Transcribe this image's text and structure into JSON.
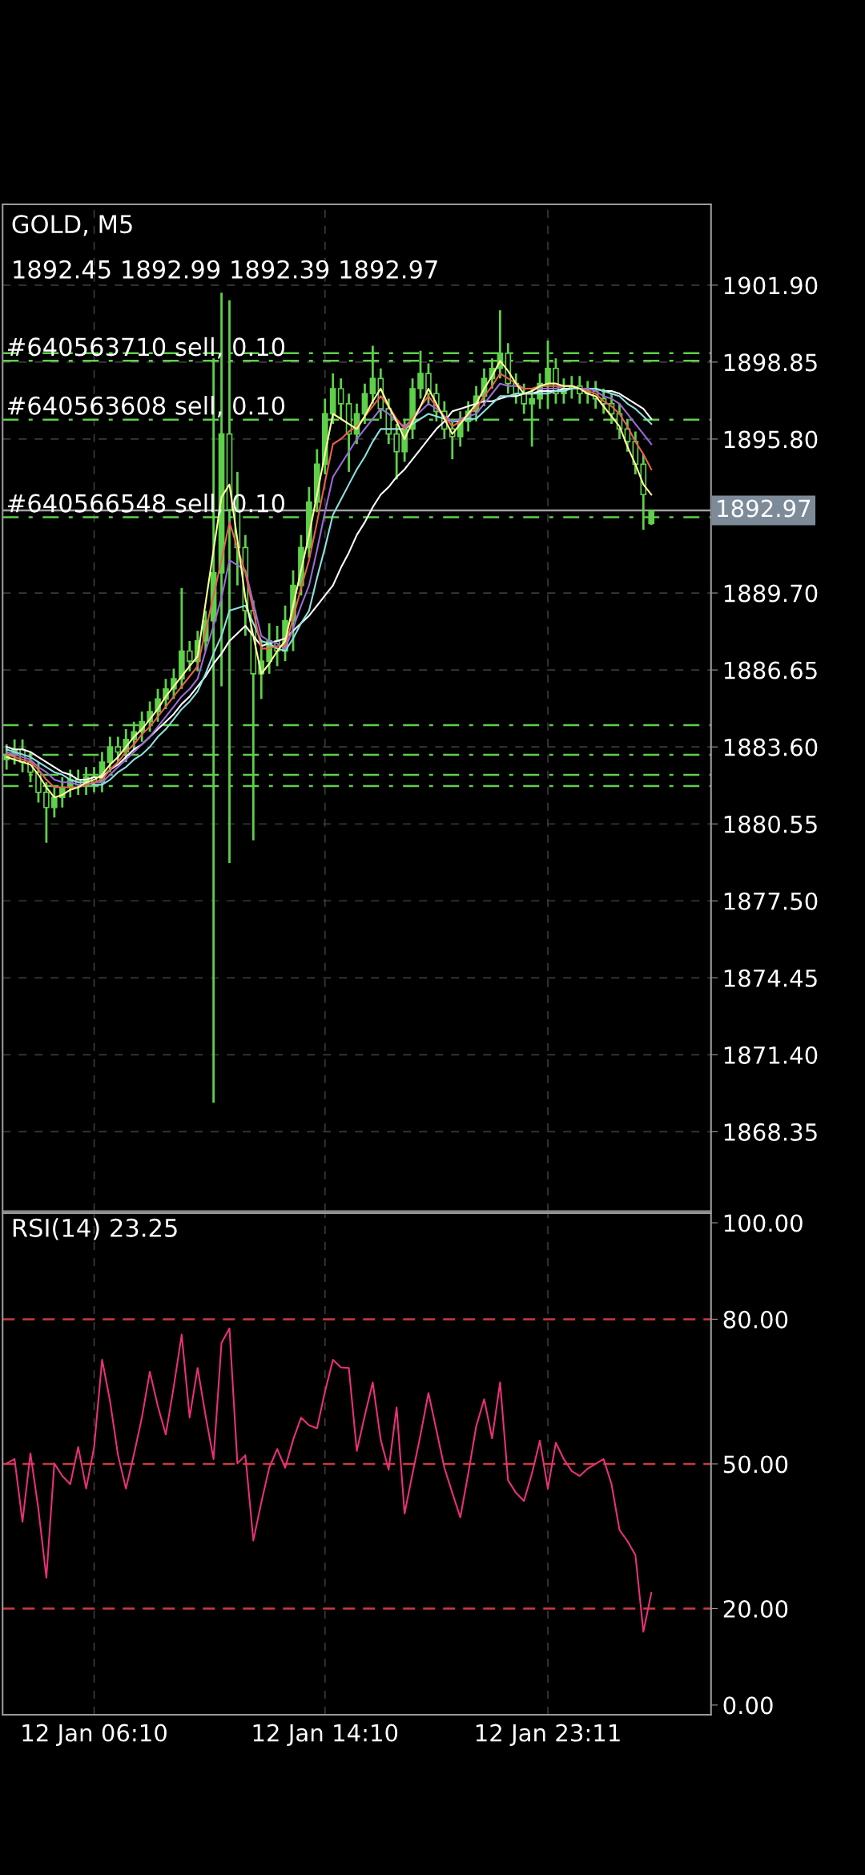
{
  "chart_data": [
    {
      "type": "candlestick",
      "title": "GOLD, M5",
      "subtitle": "1892.45 1892.99 1892.39 1892.97",
      "color": "#5ed04a",
      "categories": [
        null,
        null,
        null,
        null,
        null,
        null,
        null,
        null,
        null,
        null,
        null,
        null,
        null,
        null,
        null,
        null,
        null,
        null,
        null,
        null,
        null,
        null,
        null,
        null,
        null,
        null,
        null,
        null,
        null,
        null,
        null,
        null,
        null,
        null,
        null,
        null,
        null,
        null,
        null,
        null,
        null,
        null,
        null,
        null,
        null,
        null,
        null,
        null,
        null,
        null,
        null,
        null,
        null,
        null,
        null,
        null,
        null,
        null,
        null,
        null,
        null,
        null,
        null,
        null,
        null,
        null,
        null,
        null,
        null,
        null,
        null,
        null,
        null,
        null,
        null,
        null,
        null,
        null,
        null,
        null,
        null,
        null,
        null,
        null,
        null,
        null,
        null,
        null,
        null
      ],
      "ohlc": [
        [
          1883.1,
          1883.7,
          1882.7,
          1883.3
        ],
        [
          1883.3,
          1883.9,
          1882.9,
          1883.5
        ],
        [
          1883.5,
          1883.9,
          1882.6,
          1883.0
        ],
        [
          1883.0,
          1883.4,
          1882.2,
          1882.6
        ],
        [
          1882.6,
          1883.0,
          1881.4,
          1881.8
        ],
        [
          1881.8,
          1882.2,
          1879.8,
          1881.2
        ],
        [
          1881.2,
          1882.0,
          1880.8,
          1881.6
        ],
        [
          1881.6,
          1882.4,
          1881.2,
          1882.0
        ],
        [
          1882.0,
          1882.7,
          1881.6,
          1882.3
        ],
        [
          1882.3,
          1882.7,
          1881.7,
          1882.1
        ],
        [
          1882.1,
          1882.8,
          1881.7,
          1882.4
        ],
        [
          1882.4,
          1882.8,
          1881.8,
          1882.2
        ],
        [
          1882.2,
          1883.4,
          1881.8,
          1883.0
        ],
        [
          1883.0,
          1884.0,
          1882.6,
          1883.6
        ],
        [
          1883.6,
          1884.0,
          1883.0,
          1883.4
        ],
        [
          1883.4,
          1884.3,
          1883.0,
          1883.9
        ],
        [
          1883.9,
          1884.6,
          1883.5,
          1884.2
        ],
        [
          1884.2,
          1885.0,
          1883.8,
          1884.6
        ],
        [
          1884.6,
          1885.4,
          1884.2,
          1885.0
        ],
        [
          1885.0,
          1885.9,
          1884.6,
          1885.5
        ],
        [
          1885.5,
          1886.3,
          1885.1,
          1885.9
        ],
        [
          1885.9,
          1886.7,
          1885.5,
          1886.3
        ],
        [
          1886.3,
          1889.9,
          1885.9,
          1887.4
        ],
        [
          1887.4,
          1887.8,
          1886.6,
          1887.0
        ],
        [
          1887.0,
          1888.2,
          1886.6,
          1887.8
        ],
        [
          1887.8,
          1889.0,
          1887.4,
          1888.6
        ],
        [
          1888.6,
          1899.0,
          1869.5,
          1890.5
        ],
        [
          1890.5,
          1901.6,
          1886.0,
          1896.0
        ],
        [
          1896.0,
          1901.3,
          1879.0,
          1893.0
        ],
        [
          1893.0,
          1894.5,
          1890.0,
          1891.5
        ],
        [
          1891.5,
          1892.0,
          1888.0,
          1889.0
        ],
        [
          1889.0,
          1889.4,
          1879.9,
          1886.5
        ],
        [
          1886.5,
          1887.8,
          1885.5,
          1887.0
        ],
        [
          1887.0,
          1888.5,
          1886.5,
          1887.8
        ],
        [
          1887.8,
          1888.4,
          1886.8,
          1887.4
        ],
        [
          1887.4,
          1889.2,
          1887.0,
          1888.6
        ],
        [
          1888.6,
          1890.6,
          1887.4,
          1890.0
        ],
        [
          1890.0,
          1892.0,
          1889.6,
          1891.5
        ],
        [
          1891.5,
          1893.9,
          1891.1,
          1893.3
        ],
        [
          1893.3,
          1895.4,
          1892.9,
          1894.8
        ],
        [
          1894.8,
          1897.4,
          1894.4,
          1896.8
        ],
        [
          1896.8,
          1898.4,
          1896.4,
          1897.8
        ],
        [
          1897.8,
          1898.2,
          1896.6,
          1897.2
        ],
        [
          1897.2,
          1897.6,
          1894.5,
          1896.0
        ],
        [
          1896.0,
          1897.2,
          1895.6,
          1896.8
        ],
        [
          1896.8,
          1898.0,
          1896.4,
          1897.6
        ],
        [
          1897.6,
          1899.5,
          1897.2,
          1898.2
        ],
        [
          1898.2,
          1898.6,
          1896.6,
          1897.0
        ],
        [
          1897.0,
          1897.4,
          1895.6,
          1896.0
        ],
        [
          1896.0,
          1896.4,
          1894.2,
          1895.3
        ],
        [
          1895.3,
          1896.6,
          1894.9,
          1896.2
        ],
        [
          1896.2,
          1898.2,
          1895.8,
          1897.8
        ],
        [
          1897.8,
          1899.3,
          1897.4,
          1898.4
        ],
        [
          1898.4,
          1898.8,
          1897.2,
          1897.6
        ],
        [
          1897.6,
          1898.0,
          1896.5,
          1896.9
        ],
        [
          1896.9,
          1897.3,
          1895.8,
          1896.2
        ],
        [
          1896.2,
          1896.6,
          1895.0,
          1895.9
        ],
        [
          1895.9,
          1896.9,
          1895.5,
          1896.5
        ],
        [
          1896.5,
          1897.3,
          1896.1,
          1896.9
        ],
        [
          1896.9,
          1897.9,
          1896.5,
          1897.5
        ],
        [
          1897.5,
          1898.6,
          1897.1,
          1898.2
        ],
        [
          1898.2,
          1899.0,
          1897.8,
          1898.6
        ],
        [
          1898.6,
          1900.9,
          1898.2,
          1899.2
        ],
        [
          1899.2,
          1899.6,
          1897.6,
          1898.0
        ],
        [
          1898.0,
          1898.4,
          1897.2,
          1897.6
        ],
        [
          1897.6,
          1898.0,
          1896.8,
          1897.2
        ],
        [
          1897.2,
          1897.8,
          1895.5,
          1897.4
        ],
        [
          1897.4,
          1898.4,
          1897.0,
          1898.0
        ],
        [
          1898.0,
          1899.7,
          1897.0,
          1898.6
        ],
        [
          1898.6,
          1899.0,
          1897.2,
          1897.6
        ],
        [
          1897.6,
          1898.2,
          1897.2,
          1897.8
        ],
        [
          1897.8,
          1898.3,
          1897.4,
          1897.9
        ],
        [
          1897.9,
          1898.3,
          1897.2,
          1897.6
        ],
        [
          1897.6,
          1898.1,
          1897.2,
          1897.7
        ],
        [
          1897.7,
          1898.1,
          1897.0,
          1897.4
        ],
        [
          1897.4,
          1897.8,
          1896.8,
          1897.2
        ],
        [
          1897.2,
          1897.6,
          1896.4,
          1896.8
        ],
        [
          1896.8,
          1897.2,
          1895.8,
          1896.2
        ],
        [
          1896.2,
          1896.6,
          1895.3,
          1895.7
        ],
        [
          1895.7,
          1896.1,
          1894.4,
          1894.8
        ],
        [
          1894.8,
          1895.2,
          1892.2,
          1893.6
        ],
        [
          1892.45,
          1892.99,
          1892.39,
          1892.97
        ],
        null,
        null,
        null,
        null,
        null,
        null,
        null
      ],
      "series": [
        {
          "type": "line",
          "color": "#ffffff",
          "values": [
            1883.6,
            1883.5,
            1883.5,
            1883.4,
            1883.2,
            1883.0,
            1882.8,
            1882.6,
            1882.5,
            1882.3,
            1882.3,
            1882.4,
            1882.4,
            1882.7,
            1882.9,
            1883.2,
            1883.5,
            1883.7,
            1884.0,
            1884.3,
            1884.6,
            1884.9,
            1885.3,
            1885.6,
            1886.0,
            1886.4,
            1886.9,
            1887.3,
            1887.8,
            1888.1,
            1888.4,
            1888.0,
            1887.6,
            1887.7,
            1887.8,
            1887.9,
            1888.2,
            1888.5,
            1888.8,
            1889.2,
            1889.6,
            1890.0,
            1890.7,
            1891.3,
            1892.0,
            1892.5,
            1893.1,
            1893.6,
            1893.9,
            1894.3,
            1894.6,
            1895.0,
            1895.4,
            1895.8,
            1896.2,
            1896.5,
            1896.9,
            1897.0,
            1897.1,
            1897.2,
            1897.3,
            1897.3,
            1897.4,
            1897.5,
            1897.5,
            1897.6,
            1897.6,
            1897.7,
            1897.7,
            1897.7,
            1897.8,
            1897.8,
            1897.8,
            1897.8,
            1897.8,
            1897.7,
            1897.7,
            1897.6,
            1897.4,
            1897.2,
            1897.0,
            1896.6,
            null,
            null,
            null,
            null,
            null,
            null,
            null
          ]
        },
        {
          "type": "line",
          "color": "#8fe0e0",
          "values": [
            1883.5,
            1883.4,
            1883.3,
            1883.2,
            1883.0,
            1882.8,
            1882.6,
            1882.5,
            1882.3,
            1882.2,
            1882.2,
            1882.1,
            1882.1,
            1882.3,
            1882.6,
            1882.8,
            1883.1,
            1883.3,
            1883.6,
            1884.0,
            1884.3,
            1884.7,
            1885.1,
            1885.4,
            1885.8,
            1886.5,
            1887.3,
            1888.0,
            1889.0,
            1889.1,
            1889.2,
            1888.5,
            1887.8,
            1887.7,
            1887.5,
            1887.4,
            1887.9,
            1888.5,
            1889.0,
            1890.3,
            1891.5,
            1892.8,
            1893.4,
            1894.0,
            1894.6,
            1895.1,
            1895.7,
            1896.2,
            1896.2,
            1896.2,
            1896.2,
            1896.4,
            1896.6,
            1896.8,
            1896.7,
            1896.6,
            1896.5,
            1896.5,
            1896.6,
            1896.6,
            1896.9,
            1897.2,
            1897.5,
            1897.5,
            1897.6,
            1897.6,
            1897.6,
            1897.6,
            1897.6,
            1897.7,
            1897.7,
            1897.8,
            1897.8,
            1897.8,
            1897.8,
            1897.7,
            1897.6,
            1897.5,
            1897.2,
            1897.0,
            1896.7,
            1896.4,
            null,
            null,
            null,
            null,
            null,
            null,
            null
          ]
        },
        {
          "type": "line",
          "color": "#9a6cd8",
          "values": [
            1883.4,
            1883.3,
            1883.2,
            1883.1,
            1882.8,
            1882.6,
            1882.3,
            1882.2,
            1882.2,
            1882.1,
            1882.1,
            1882.2,
            1882.2,
            1882.5,
            1882.8,
            1883.1,
            1883.4,
            1883.7,
            1884.0,
            1884.4,
            1884.8,
            1885.2,
            1885.6,
            1885.9,
            1886.3,
            1887.4,
            1888.4,
            1889.5,
            1891.0,
            1890.8,
            1890.6,
            1889.3,
            1888.0,
            1887.8,
            1887.7,
            1887.5,
            1888.3,
            1889.2,
            1890.0,
            1891.4,
            1892.9,
            1894.3,
            1894.8,
            1895.3,
            1895.8,
            1896.2,
            1896.6,
            1897.0,
            1896.8,
            1896.5,
            1896.3,
            1896.6,
            1896.9,
            1897.2,
            1897.0,
            1896.7,
            1896.5,
            1896.6,
            1896.7,
            1896.8,
            1897.2,
            1897.6,
            1898.0,
            1897.9,
            1897.9,
            1897.8,
            1897.8,
            1897.8,
            1897.8,
            1897.8,
            1897.9,
            1897.9,
            1897.8,
            1897.8,
            1897.7,
            1897.5,
            1897.4,
            1897.2,
            1896.8,
            1896.4,
            1896.0,
            1895.6,
            null,
            null,
            null,
            null,
            null,
            null,
            null
          ]
        },
        {
          "type": "line",
          "color": "#e8604c",
          "values": [
            1883.3,
            1883.2,
            1883.1,
            1883.0,
            1882.7,
            1882.3,
            1882.0,
            1882.0,
            1882.0,
            1882.0,
            1882.1,
            1882.2,
            1882.3,
            1882.7,
            1883.0,
            1883.4,
            1883.7,
            1884.1,
            1884.4,
            1884.8,
            1885.2,
            1885.6,
            1886.0,
            1886.4,
            1886.8,
            1888.2,
            1889.6,
            1891.0,
            1892.5,
            1891.5,
            1890.5,
            1889.0,
            1887.5,
            1887.5,
            1887.6,
            1887.6,
            1888.7,
            1889.9,
            1891.0,
            1892.5,
            1894.1,
            1895.6,
            1895.8,
            1896.1,
            1896.3,
            1896.7,
            1897.1,
            1897.5,
            1897.1,
            1896.6,
            1896.2,
            1896.6,
            1897.1,
            1897.5,
            1897.1,
            1896.7,
            1896.3,
            1896.5,
            1896.8,
            1897.0,
            1897.5,
            1897.9,
            1898.4,
            1898.2,
            1898.0,
            1897.8,
            1897.8,
            1897.9,
            1897.9,
            1897.9,
            1897.9,
            1897.9,
            1897.8,
            1897.7,
            1897.6,
            1897.3,
            1897.1,
            1896.8,
            1896.3,
            1895.7,
            1895.2,
            1894.6,
            null,
            null,
            null,
            null,
            null,
            null,
            null
          ]
        },
        {
          "type": "line",
          "color": "#ffff99",
          "values": [
            1883.2,
            1883.1,
            1883.0,
            1882.9,
            1882.5,
            1882.0,
            1881.6,
            1881.7,
            1881.9,
            1882.0,
            1882.2,
            1882.3,
            1882.5,
            1882.9,
            1883.2,
            1883.6,
            1884.0,
            1884.3,
            1884.7,
            1885.1,
            1885.6,
            1886.0,
            1886.4,
            1886.8,
            1887.2,
            1889.3,
            1891.4,
            1893.5,
            1894.0,
            1891.8,
            1889.5,
            1888.0,
            1886.5,
            1886.9,
            1887.4,
            1887.8,
            1889.2,
            1890.6,
            1892.0,
            1893.6,
            1895.2,
            1896.8,
            1896.6,
            1896.4,
            1896.2,
            1896.7,
            1897.3,
            1897.8,
            1897.1,
            1896.5,
            1895.8,
            1896.5,
            1897.1,
            1897.8,
            1897.2,
            1896.6,
            1896.0,
            1896.4,
            1896.8,
            1897.2,
            1897.8,
            1898.3,
            1898.9,
            1898.5,
            1898.0,
            1897.6,
            1897.7,
            1897.9,
            1898.0,
            1898.0,
            1897.9,
            1897.9,
            1897.8,
            1897.6,
            1897.5,
            1897.1,
            1896.7,
            1896.3,
            1895.5,
            1894.8,
            1894.0,
            1893.6,
            null,
            null,
            null,
            null,
            null,
            null,
            null
          ]
        }
      ],
      "ylim": [
        1865.2,
        1905.1
      ],
      "yticks": [
        {
          "value": 1868.35,
          "label": "1868.35"
        },
        {
          "value": 1871.4,
          "label": "1871.40"
        },
        {
          "value": 1874.45,
          "label": "1874.45"
        },
        {
          "value": 1877.5,
          "label": "1877.50"
        },
        {
          "value": 1880.55,
          "label": "1880.55"
        },
        {
          "value": 1883.6,
          "label": "1883.60"
        },
        {
          "value": 1886.65,
          "label": "1886.65"
        },
        {
          "value": 1889.7,
          "label": "1889.70"
        },
        {
          "value": 1895.8,
          "label": "1895.80"
        },
        {
          "value": 1898.85,
          "label": "1898.85"
        },
        {
          "value": 1901.9,
          "label": "1901.90"
        }
      ],
      "tick_labels": "y",
      "grid": true,
      "ref_lines": [
        {
          "axis": "y",
          "value": 1899.2,
          "label": null,
          "color": "#5ed04a",
          "line_style": "dashed"
        },
        {
          "axis": "y",
          "value": 1898.9,
          "label": "#640563710 sell, 0.10",
          "color": "#5ed04a",
          "line_style": "dashed"
        },
        {
          "axis": "y",
          "value": 1896.57,
          "label": "#640563608 sell, 0.10",
          "color": "#5ed04a",
          "line_style": "dashed"
        },
        {
          "axis": "y",
          "value": 1892.7,
          "label": "#640566548 sell, 0.10",
          "color": "#5ed04a",
          "line_style": "dashed"
        },
        {
          "axis": "y",
          "value": 1884.46,
          "label": null,
          "color": "#5ed04a",
          "line_style": "dashed"
        },
        {
          "axis": "y",
          "value": 1883.29,
          "label": null,
          "color": "#5ed04a",
          "line_style": "dashed"
        },
        {
          "axis": "y",
          "value": 1882.49,
          "label": null,
          "color": "#5ed04a",
          "line_style": "dashed"
        },
        {
          "axis": "y",
          "value": 1882.05,
          "label": null,
          "color": "#5ed04a",
          "line_style": "dashed"
        },
        {
          "axis": "y",
          "value": 1892.97,
          "label": "1892.97",
          "color": "#9e9e9e",
          "line_style": "solid"
        }
      ]
    },
    {
      "type": "line",
      "title": "RSI(14) 23.25",
      "categories": [
        null,
        null,
        null,
        null,
        null,
        null,
        null,
        null,
        null,
        null,
        null,
        "12 Jan 06:10",
        null,
        null,
        null,
        null,
        null,
        null,
        null,
        null,
        null,
        null,
        null,
        null,
        null,
        null,
        null,
        null,
        null,
        null,
        null,
        null,
        null,
        null,
        null,
        null,
        null,
        null,
        null,
        null,
        "12 Jan 14:10",
        null,
        null,
        null,
        null,
        null,
        null,
        null,
        null,
        null,
        null,
        null,
        null,
        null,
        null,
        null,
        null,
        null,
        null,
        null,
        null,
        null,
        null,
        null,
        null,
        null,
        null,
        null,
        "12 Jan 23:11",
        null,
        null,
        null,
        null,
        null,
        null,
        null,
        null,
        null,
        null,
        null,
        null,
        null,
        null,
        null,
        null,
        null,
        null,
        null,
        null
      ],
      "series": [
        {
          "color": "#e8307a",
          "values": [
            50.1,
            51.0,
            38.0,
            52.2,
            40.6,
            26.4,
            50.1,
            47.5,
            45.8,
            53.5,
            44.9,
            53.5,
            71.6,
            63.0,
            51.8,
            44.9,
            52.0,
            59.6,
            69.1,
            62.0,
            56.1,
            66.0,
            76.8,
            59.6,
            69.9,
            60.0,
            51.0,
            75.1,
            78.1,
            50.1,
            51.8,
            34.1,
            42.0,
            49.2,
            53.1,
            49.2,
            55.0,
            59.6,
            58.0,
            57.4,
            65.0,
            71.6,
            70.0,
            69.9,
            52.7,
            60.0,
            66.9,
            55.0,
            48.8,
            61.7,
            39.7,
            48.0,
            56.0,
            64.7,
            57.0,
            49.2,
            44.0,
            38.9,
            48.0,
            57.8,
            63.4,
            55.3,
            66.9,
            46.6,
            44.0,
            42.3,
            48.0,
            54.8,
            44.9,
            54.4,
            51.0,
            48.5,
            47.5,
            49.0,
            50.0,
            51.0,
            45.8,
            36.3,
            34.0,
            31.1,
            15.2,
            23.25,
            null,
            null,
            null,
            null,
            null,
            null,
            null
          ]
        }
      ],
      "ylim": [
        -2,
        102
      ],
      "yticks": [
        {
          "value": 0,
          "label": "0.00"
        },
        {
          "value": 20,
          "label": "20.00"
        },
        {
          "value": 50,
          "label": "50.00"
        },
        {
          "value": 80,
          "label": "80.00"
        },
        {
          "value": 100,
          "label": "100.00"
        }
      ],
      "grid": "x",
      "ref_lines": [
        {
          "axis": "y",
          "value": 80,
          "label": null,
          "color": "#c83c3c",
          "line_style": "dashed"
        },
        {
          "axis": "y",
          "value": 50,
          "label": null,
          "color": "#c83c3c",
          "line_style": "dashed"
        },
        {
          "axis": "y",
          "value": 20,
          "label": null,
          "color": "#c83c3c",
          "line_style": "dashed"
        }
      ]
    }
  ]
}
